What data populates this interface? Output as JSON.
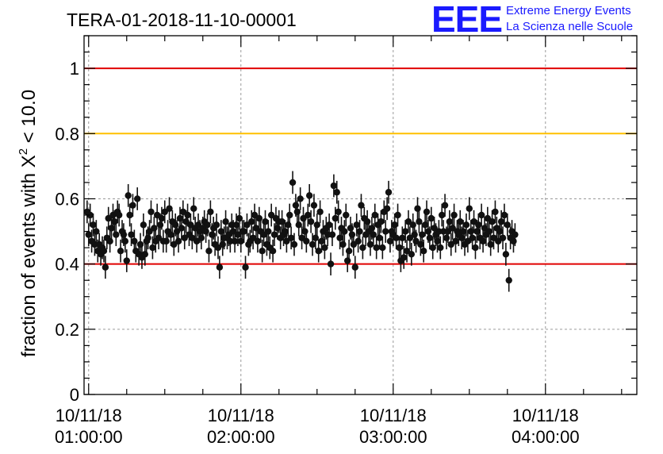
{
  "chart_data": {
    "type": "scatter",
    "title": "TERA-01-2018-11-10-00001",
    "ylabel": "fraction of events with X² < 10.0",
    "ylabel_main": "fraction of events with X",
    "ylabel_sup": "2",
    "ylabel_tail": " < 10.0",
    "ylim": [
      0,
      1.1
    ],
    "xlim_hours": [
      0.97,
      4.6
    ],
    "grid": true,
    "y_ticks": [
      "0",
      "0.2",
      "0.4",
      "0.6",
      "0.8",
      "1"
    ],
    "y_tick_values": [
      0,
      0.2,
      0.4,
      0.6,
      0.8,
      1.0
    ],
    "x_ticks": [
      {
        "date": "10/11/18",
        "time": "01:00:00",
        "hour": 1.0
      },
      {
        "date": "10/11/18",
        "time": "02:00:00",
        "hour": 2.0
      },
      {
        "date": "10/11/18",
        "time": "03:00:00",
        "hour": 3.0
      },
      {
        "date": "10/11/18",
        "time": "04:00:00",
        "hour": 4.0
      }
    ],
    "reference_lines": [
      {
        "y": 1.0,
        "color": "#e00000"
      },
      {
        "y": 0.8,
        "color": "#ffc000"
      },
      {
        "y": 0.4,
        "color": "#e00000"
      }
    ],
    "marker_color": "#111111",
    "error_bar": 0.035,
    "x_start_hour": 0.99,
    "x_step_hour": 0.01,
    "values": [
      0.56,
      0.49,
      0.55,
      0.47,
      0.52,
      0.46,
      0.5,
      0.44,
      0.46,
      0.43,
      0.45,
      0.44,
      0.39,
      0.48,
      0.54,
      0.47,
      0.51,
      0.55,
      0.53,
      0.49,
      0.56,
      0.55,
      0.44,
      0.5,
      0.49,
      0.47,
      0.41,
      0.61,
      0.55,
      0.49,
      0.58,
      0.47,
      0.44,
      0.6,
      0.43,
      0.46,
      0.42,
      0.52,
      0.43,
      0.47,
      0.48,
      0.5,
      0.56,
      0.45,
      0.51,
      0.47,
      0.55,
      0.48,
      0.52,
      0.54,
      0.47,
      0.56,
      0.47,
      0.5,
      0.57,
      0.49,
      0.53,
      0.46,
      0.52,
      0.5,
      0.47,
      0.54,
      0.51,
      0.56,
      0.48,
      0.53,
      0.55,
      0.49,
      0.52,
      0.48,
      0.57,
      0.51,
      0.47,
      0.52,
      0.5,
      0.48,
      0.51,
      0.53,
      0.5,
      0.52,
      0.44,
      0.56,
      0.49,
      0.51,
      0.46,
      0.52,
      0.45,
      0.39,
      0.5,
      0.46,
      0.48,
      0.53,
      0.48,
      0.49,
      0.47,
      0.52,
      0.5,
      0.47,
      0.52,
      0.49,
      0.54,
      0.47,
      0.5,
      0.5,
      0.39,
      0.52,
      0.46,
      0.47,
      0.53,
      0.48,
      0.55,
      0.51,
      0.47,
      0.54,
      0.5,
      0.44,
      0.49,
      0.53,
      0.46,
      0.5,
      0.45,
      0.55,
      0.44,
      0.49,
      0.54,
      0.51,
      0.53,
      0.48,
      0.53,
      0.49,
      0.5,
      0.47,
      0.52,
      0.55,
      0.48,
      0.65,
      0.46,
      0.58,
      0.56,
      0.52,
      0.6,
      0.48,
      0.54,
      0.5,
      0.47,
      0.55,
      0.61,
      0.53,
      0.46,
      0.58,
      0.48,
      0.52,
      0.44,
      0.56,
      0.47,
      0.5,
      0.45,
      0.51,
      0.49,
      0.52,
      0.4,
      0.49,
      0.64,
      0.54,
      0.62,
      0.56,
      0.48,
      0.51,
      0.46,
      0.5,
      0.55,
      0.41,
      0.44,
      0.51,
      0.49,
      0.46,
      0.39,
      0.52,
      0.47,
      0.5,
      0.58,
      0.45,
      0.54,
      0.49,
      0.53,
      0.5,
      0.46,
      0.51,
      0.49,
      0.55,
      0.45,
      0.52,
      0.48,
      0.53,
      0.45,
      0.56,
      0.5,
      0.57,
      0.62,
      0.47,
      0.5,
      0.49,
      0.52,
      0.48,
      0.55,
      0.45,
      0.41,
      0.48,
      0.42,
      0.5,
      0.44,
      0.53,
      0.48,
      0.43,
      0.52,
      0.49,
      0.47,
      0.57,
      0.53,
      0.46,
      0.49,
      0.44,
      0.52,
      0.56,
      0.5,
      0.48,
      0.54,
      0.45,
      0.51,
      0.49,
      0.47,
      0.5,
      0.45,
      0.55,
      0.5,
      0.58,
      0.48,
      0.5,
      0.53,
      0.46,
      0.51,
      0.55,
      0.47,
      0.5,
      0.49,
      0.53,
      0.48,
      0.5,
      0.46,
      0.52,
      0.47,
      0.57,
      0.5,
      0.48,
      0.53,
      0.45,
      0.5,
      0.52,
      0.48,
      0.55,
      0.47,
      0.51,
      0.49,
      0.54,
      0.5,
      0.46,
      0.53,
      0.48,
      0.56,
      0.51,
      0.47,
      0.5,
      0.53,
      0.48,
      0.55,
      0.43,
      0.52,
      0.35,
      0.48,
      0.5,
      0.47,
      0.49
    ]
  },
  "logo": {
    "mark": "EEE",
    "line1": "Extreme Energy Events",
    "line2": "La Scienza nelle Scuole",
    "color": "#1a1aff"
  }
}
